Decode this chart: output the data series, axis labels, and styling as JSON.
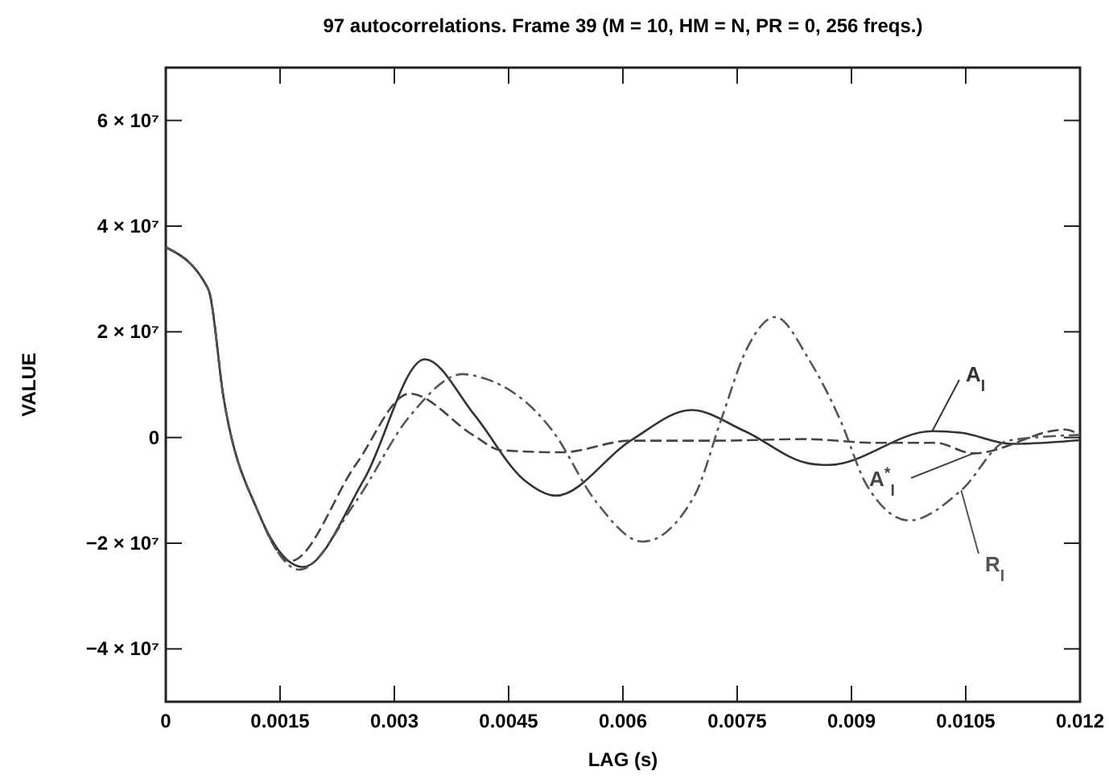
{
  "chart_data": {
    "type": "line",
    "title": "97 autocorrelations. Frame 39 (M = 10, HM = N, PR = 0, 256 freqs.)",
    "xlabel": "LAG (s)",
    "ylabel": "VALUE",
    "xlim": [
      0,
      0.012
    ],
    "xticks": [
      0,
      0.0015,
      0.003,
      0.0045,
      0.006,
      0.0075,
      0.009,
      0.0105,
      0.012
    ],
    "ylim": [
      -50000000,
      70000000
    ],
    "yticks": [
      {
        "value": -40000000,
        "label": "−4 × 10⁷"
      },
      {
        "value": -20000000,
        "label": "−2 × 10⁷"
      },
      0,
      {
        "value": 20000000,
        "label": "2 × 10⁷"
      },
      {
        "value": 40000000,
        "label": "4 × 10⁷"
      },
      {
        "value": 60000000,
        "label": "6 × 10⁷"
      }
    ],
    "grid": false,
    "marker": "none",
    "series": [
      {
        "name": "A$_{l}$",
        "color": "#333333",
        "line_style": "solid",
        "x": [
          0,
          0.00056,
          0.00076,
          0.00121,
          0.0018,
          0.0026,
          0.0034,
          0.00405,
          0.0047,
          0.00512,
          0.0061,
          0.0069,
          0.0076,
          0.00844,
          0.0087,
          0.01006,
          0.01044,
          0.0111,
          0.012
        ],
        "values": [
          36000000,
          28000000,
          7400000,
          -14000000,
          -24500000,
          -8000000,
          14800000,
          4300000,
          -8000000,
          -11000000,
          -600000,
          5200000,
          1200000,
          -4900000,
          -5200000,
          1200000,
          900000,
          -1200000,
          -500000
        ]
      },
      {
        "name": "A$^{*}$$_{l}$",
        "color": "#444444",
        "line_style": "dashed",
        "x": [
          0,
          0.00056,
          0.00076,
          0.00121,
          0.00163,
          0.0025,
          0.0032,
          0.00405,
          0.0044,
          0.0052,
          0.0061,
          0.0072,
          0.0084,
          0.0093,
          0.0101,
          0.0106,
          0.0118,
          0.012
        ],
        "values": [
          36000000,
          28000000,
          7400000,
          -14000000,
          -23400000,
          -5000000,
          8300000,
          300000,
          -2400000,
          -2800000,
          -600000,
          -600000,
          -300000,
          -1000000,
          -1000000,
          -3000000,
          1500000,
          500000
        ]
      },
      {
        "name": "R$_{l}$",
        "color": "#555555",
        "line_style": "dotted",
        "x": [
          0,
          0.00056,
          0.00076,
          0.00121,
          0.00175,
          0.0025,
          0.0032,
          0.0039,
          0.00405,
          0.00508,
          0.00564,
          0.00626,
          0.00694,
          0.00729,
          0.00762,
          0.008,
          0.00844,
          0.00885,
          0.0092,
          0.00976,
          0.01044,
          0.01105,
          0.012
        ],
        "values": [
          36000000,
          28000000,
          7400000,
          -14000000,
          -25000000,
          -12000000,
          4000000,
          12000000,
          11700000,
          1200000,
          -12000000,
          -19700000,
          -11000000,
          3400000,
          16600000,
          22800000,
          14800000,
          3400000,
          -9000000,
          -15700000,
          -10000000,
          -600000,
          500000
        ]
      }
    ]
  }
}
